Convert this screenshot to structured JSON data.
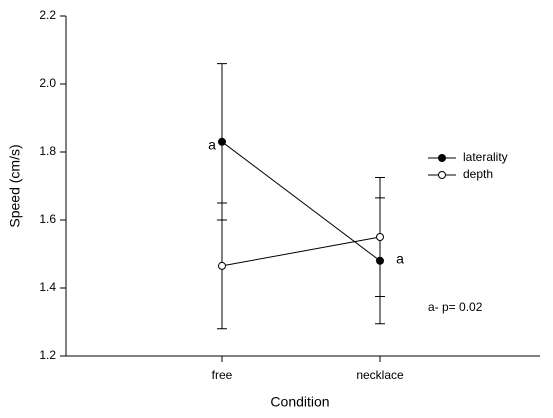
{
  "chart_data": {
    "type": "line",
    "xlabel": "Condition",
    "ylabel": "Speed (cm/s)",
    "categories": [
      "free",
      "necklace"
    ],
    "series": [
      {
        "name": "laterality",
        "color": "#000000",
        "marker": "filled",
        "values": [
          1.83,
          1.48
        ],
        "errors": [
          0.23,
          0.185
        ]
      },
      {
        "name": "depth",
        "color": "#000000",
        "marker": "open",
        "values": [
          1.465,
          1.55
        ],
        "errors": [
          0.185,
          0.175
        ]
      }
    ],
    "ylim": [
      1.2,
      2.2
    ],
    "yticks": [
      1.2,
      1.4,
      1.6,
      1.8,
      {
        "value": 2.0,
        "label": "2.0"
      },
      2.2
    ],
    "legend": "right",
    "annotations": [
      "a",
      "a",
      "a- p= 0.02"
    ]
  }
}
